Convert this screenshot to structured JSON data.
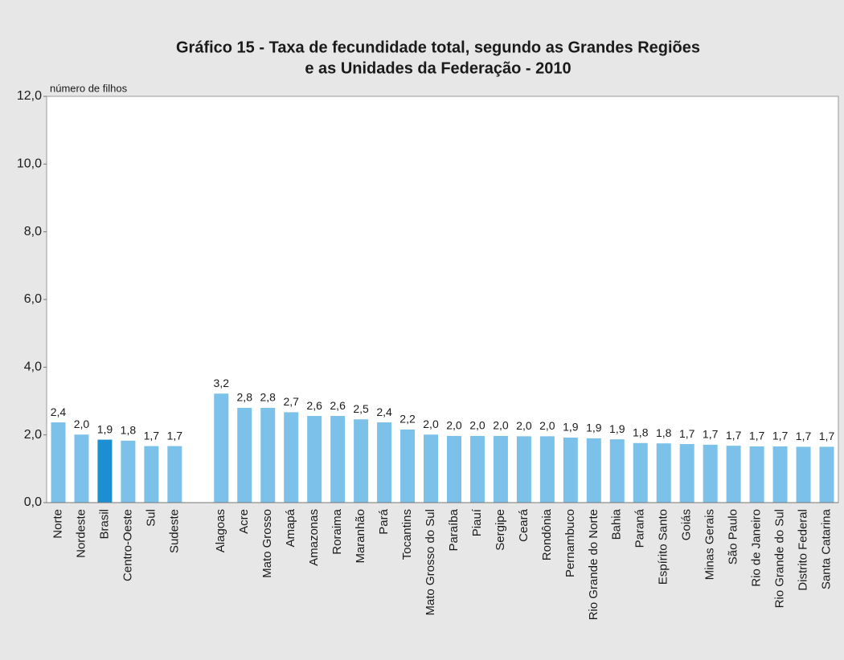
{
  "chart_data": {
    "type": "bar",
    "title": [
      "Gráfico 15 - Taxa de fecundidade total, segundo as Grandes Regiões",
      "e as Unidades da Federação - 2010"
    ],
    "y_label": "número de filhos",
    "categories": [
      "Norte",
      "Nordeste",
      "Brasil",
      "Centro-Oeste",
      "Sul",
      "Sudeste",
      null,
      "Alagoas",
      "Acre",
      "Mato Grosso",
      "Amapá",
      "Amazonas",
      "Roraima",
      "Maranhão",
      "Pará",
      "Tocantins",
      "Mato Grosso do Sul",
      "Paraíba",
      "Piauí",
      "Sergipe",
      "Ceará",
      "Rondônia",
      "Pernambuco",
      "Rio Grande do Norte",
      "Bahia",
      "Paraná",
      "Espírito Santo",
      "Goiás",
      "Minas Gerais",
      "São Paulo",
      "Rio de Janeiro",
      "Rio Grande do Sul",
      "Distrito Federal",
      "Santa Catarina"
    ],
    "values": [
      2.37,
      2.01,
      1.86,
      1.83,
      1.67,
      1.67,
      null,
      3.22,
      2.8,
      2.8,
      2.67,
      2.56,
      2.56,
      2.46,
      2.37,
      2.16,
      2.01,
      1.97,
      1.97,
      1.97,
      1.96,
      1.96,
      1.92,
      1.9,
      1.87,
      1.76,
      1.75,
      1.73,
      1.71,
      1.68,
      1.66,
      1.66,
      1.65,
      1.65
    ],
    "value_labels": [
      "2,4",
      "2,0",
      "1,9",
      "1,8",
      "1,7",
      "1,7",
      null,
      "3,2",
      "2,8",
      "2,8",
      "2,7",
      "2,6",
      "2,6",
      "2,5",
      "2,4",
      "2,2",
      "2,0",
      "2,0",
      "2,0",
      "2,0",
      "2,0",
      "2,0",
      "1,9",
      "1,9",
      "1,9",
      "1,8",
      "1,8",
      "1,7",
      "1,7",
      "1,7",
      "1,7",
      "1,7",
      "1,7",
      "1,7"
    ],
    "color": "#7cc1ea",
    "colors": [
      "#7cc1ea",
      "#7cc1ea",
      "#1b8fd2",
      "#7cc1ea",
      "#7cc1ea",
      "#7cc1ea",
      null,
      "#7cc1ea",
      "#7cc1ea",
      "#7cc1ea",
      "#7cc1ea",
      "#7cc1ea",
      "#7cc1ea",
      "#7cc1ea",
      "#7cc1ea",
      "#7cc1ea",
      "#7cc1ea",
      "#7cc1ea",
      "#7cc1ea",
      "#7cc1ea",
      "#7cc1ea",
      "#7cc1ea",
      "#7cc1ea",
      "#7cc1ea",
      "#7cc1ea",
      "#7cc1ea",
      "#7cc1ea",
      "#7cc1ea",
      "#7cc1ea",
      "#7cc1ea",
      "#7cc1ea",
      "#7cc1ea",
      "#7cc1ea",
      "#7cc1ea"
    ],
    "ylim": [
      0,
      12
    ],
    "yticks": [
      {
        "value": 0,
        "label": "0,0"
      },
      {
        "value": 2,
        "label": "2,0"
      },
      {
        "value": 4,
        "label": "4,0"
      },
      {
        "value": 6,
        "label": "6,0"
      },
      {
        "value": 8,
        "label": "8,0"
      },
      {
        "value": 10,
        "label": "10,0"
      },
      {
        "value": 12,
        "label": "12,0"
      }
    ],
    "grid": false
  }
}
